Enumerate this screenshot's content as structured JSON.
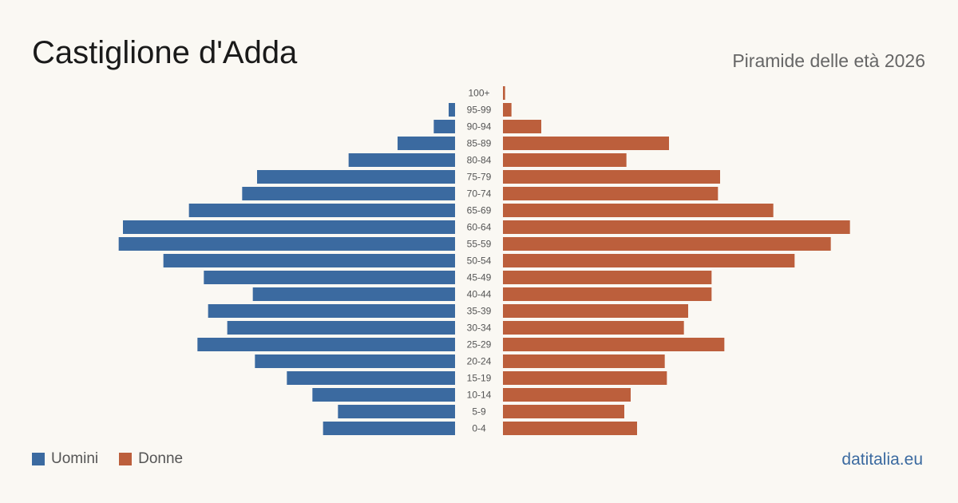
{
  "header": {
    "title": "Castiglione d'Adda",
    "subtitle": "Piramide delle età 2026"
  },
  "legend": {
    "men_label": "Uomini",
    "women_label": "Donne"
  },
  "footer": {
    "brand": "datitalia.eu"
  },
  "colors": {
    "men": "#3b6aa0",
    "women": "#bc5f3c",
    "background": "#faf8f3"
  },
  "chart_data": {
    "type": "bar",
    "orientation": "horizontal-pyramid",
    "categories": [
      "100+",
      "95-99",
      "90-94",
      "85-89",
      "80-84",
      "75-79",
      "70-74",
      "65-69",
      "60-64",
      "55-59",
      "50-54",
      "45-49",
      "40-44",
      "35-39",
      "30-34",
      "25-29",
      "20-24",
      "15-19",
      "10-14",
      "5-9",
      "0-4"
    ],
    "series": [
      {
        "name": "Uomini",
        "values": [
          0,
          3,
          10,
          27,
          50,
          93,
          100,
          125,
          156,
          158,
          137,
          118,
          95,
          116,
          107,
          121,
          94,
          79,
          67,
          55,
          62
        ]
      },
      {
        "name": "Donne",
        "values": [
          1,
          4,
          18,
          78,
          58,
          102,
          101,
          127,
          163,
          154,
          137,
          98,
          98,
          87,
          85,
          104,
          76,
          77,
          60,
          57,
          63
        ]
      }
    ],
    "xmax": 165,
    "grid": false,
    "legend_position": "bottom-left"
  }
}
